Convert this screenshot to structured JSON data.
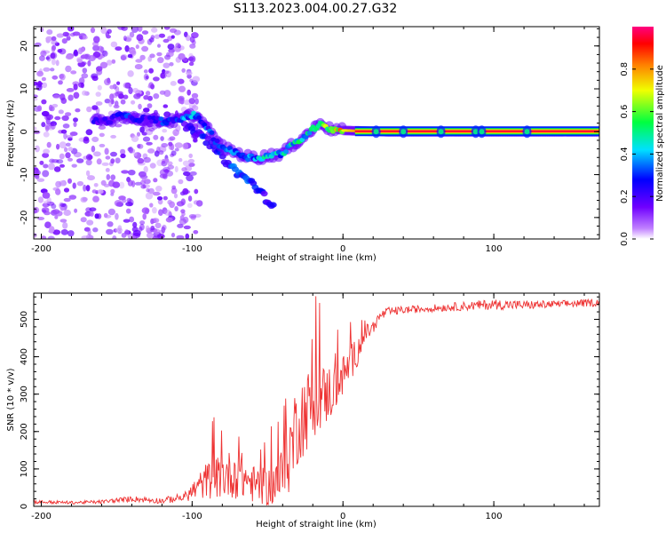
{
  "title": "S113.2023.004.00.27.G32",
  "colors": {
    "snr_line": "#ee3333",
    "track_low": "#7b2cff",
    "track_core": "#ff2a2a",
    "noise": "#a060ff"
  },
  "chart_data": [
    {
      "type": "heatmap",
      "xlabel": "Height of straight line (km)",
      "ylabel": "Frequency (Hz)",
      "xlim": [
        -205,
        170
      ],
      "ylim": [
        -25,
        24.5
      ],
      "xticks": [
        -200,
        -100,
        0,
        100
      ],
      "xtick_labels": [
        "-200",
        "-100",
        "0",
        "100"
      ],
      "yticks": [
        -20,
        -10,
        0,
        10,
        20
      ],
      "ytick_labels": [
        "-20",
        "-10",
        "0",
        "10",
        "20"
      ],
      "colorbar": {
        "label": "Normalized spectral amplitude",
        "range": [
          0,
          1
        ],
        "ticks": [
          0.0,
          0.2,
          0.4,
          0.6,
          0.8
        ],
        "tick_labels": [
          "0.0",
          "0.2",
          "0.4",
          "0.6",
          "0.8"
        ],
        "colormap": [
          "#ffffff",
          "#8000ff",
          "#0000ff",
          "#00ffff",
          "#00ff00",
          "#ffff00",
          "#ff8000",
          "#ff0000",
          "#ff00aa"
        ]
      },
      "main_track": [
        [
          -165,
          2.5,
          0.2
        ],
        [
          -155,
          2.5,
          0.2
        ],
        [
          -148,
          4,
          0.3
        ],
        [
          -140,
          3,
          0.25
        ],
        [
          -130,
          3,
          0.2
        ],
        [
          -120,
          2.5,
          0.3
        ],
        [
          -110,
          2.5,
          0.3
        ],
        [
          -100,
          4,
          0.35
        ],
        [
          -95,
          3,
          0.3
        ],
        [
          -90,
          1,
          0.3
        ],
        [
          -85,
          -2,
          0.3
        ],
        [
          -78,
          -4,
          0.35
        ],
        [
          -70,
          -5,
          0.35
        ],
        [
          -62,
          -6,
          0.35
        ],
        [
          -55,
          -6,
          0.4
        ],
        [
          -48,
          -5.5,
          0.4
        ],
        [
          -40,
          -5,
          0.4
        ],
        [
          -33,
          -3,
          0.45
        ],
        [
          -27,
          -1.5,
          0.45
        ],
        [
          -20,
          0.5,
          0.5
        ],
        [
          -14,
          2.5,
          0.5
        ],
        [
          -10,
          0.7,
          0.6
        ],
        [
          0,
          0.3,
          0.7
        ],
        [
          10,
          0.2,
          0.8
        ],
        [
          30,
          0,
          0.9
        ],
        [
          60,
          0,
          0.95
        ],
        [
          100,
          0,
          0.95
        ],
        [
          140,
          0,
          0.95
        ],
        [
          170,
          0,
          0.95
        ]
      ],
      "secondary_track": [
        [
          -105,
          1.5,
          0.2
        ],
        [
          -90,
          -2,
          0.25
        ],
        [
          -80,
          -6,
          0.25
        ],
        [
          -70,
          -9.5,
          0.3
        ],
        [
          -60,
          -12,
          0.3
        ],
        [
          -55,
          -14,
          0.25
        ],
        [
          -45,
          -18,
          0.2
        ]
      ]
    },
    {
      "type": "line",
      "xlabel": "Height of straight line (km)",
      "ylabel": "SNR (10 * v/v)",
      "xlim": [
        -205,
        170
      ],
      "ylim": [
        0,
        570
      ],
      "xticks": [
        -200,
        -100,
        0,
        100
      ],
      "xtick_labels": [
        "-200",
        "-100",
        "0",
        "100"
      ],
      "yticks": [
        0,
        100,
        200,
        300,
        400,
        500
      ],
      "ytick_labels": [
        "0",
        "100",
        "200",
        "300",
        "400",
        "500"
      ],
      "series": [
        {
          "x": [
            -205,
            -180,
            -160,
            -140,
            -120,
            -105,
            -100,
            -90,
            -80,
            -70,
            -60,
            -50,
            -40,
            -35,
            -30,
            -25,
            -20,
            -15,
            -10,
            -5,
            0,
            5,
            10,
            15,
            20,
            25,
            30,
            40,
            60,
            80,
            100,
            120,
            140,
            170
          ],
          "y": [
            12,
            10,
            12,
            20,
            15,
            25,
            40,
            70,
            80,
            90,
            60,
            50,
            80,
            150,
            230,
            250,
            280,
            290,
            300,
            320,
            350,
            380,
            420,
            460,
            480,
            510,
            520,
            525,
            530,
            535,
            540,
            538,
            540,
            545
          ],
          "noise": [
            5,
            4,
            5,
            8,
            8,
            12,
            25,
            50,
            60,
            70,
            50,
            50,
            80,
            110,
            120,
            110,
            100,
            90,
            80,
            70,
            55,
            50,
            40,
            25,
            18,
            14,
            12,
            10,
            10,
            12,
            14,
            12,
            10,
            10
          ]
        }
      ]
    }
  ]
}
